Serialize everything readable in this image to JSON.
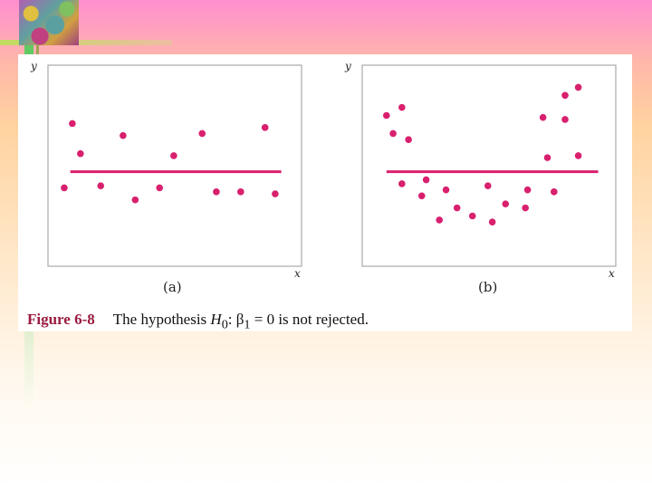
{
  "caption": {
    "figure_label": "Figure 6-8",
    "text_before": "The hypothesis ",
    "hyp_symbol": "H",
    "hyp_subscript": "0",
    "text_mid": ": ",
    "beta_symbol": "β",
    "beta_subscript": "1",
    "text_after": " = 0 is not rejected."
  },
  "colors": {
    "points": "#d8206e",
    "fit_line": "#d8206e",
    "frame": "#a9a9a9"
  },
  "chart_data": [
    {
      "type": "scatter",
      "panel_label": "(a)",
      "xlabel": "x",
      "ylabel": "y",
      "x_ticks": [],
      "y_ticks": [],
      "points": [
        {
          "x": 0.8,
          "y": 3.9
        },
        {
          "x": 1.2,
          "y": 7.1
        },
        {
          "x": 1.6,
          "y": 5.6
        },
        {
          "x": 2.6,
          "y": 4.0
        },
        {
          "x": 3.7,
          "y": 6.5
        },
        {
          "x": 4.3,
          "y": 3.3
        },
        {
          "x": 5.5,
          "y": 3.9
        },
        {
          "x": 6.2,
          "y": 5.5
        },
        {
          "x": 7.6,
          "y": 6.6
        },
        {
          "x": 8.3,
          "y": 3.7
        },
        {
          "x": 9.5,
          "y": 3.7
        },
        {
          "x": 10.7,
          "y": 6.9
        },
        {
          "x": 11.2,
          "y": 3.6
        }
      ],
      "fit_line": {
        "x_start": 1.1,
        "x_end": 11.5,
        "y": 4.7
      },
      "xlim": [
        0,
        12.5
      ],
      "ylim": [
        0,
        10
      ]
    },
    {
      "type": "scatter",
      "panel_label": "(b)",
      "xlabel": "x",
      "ylabel": "y",
      "x_ticks": [],
      "y_ticks": [],
      "points": [
        {
          "x": 1.1,
          "y": 7.5
        },
        {
          "x": 1.4,
          "y": 6.6
        },
        {
          "x": 1.8,
          "y": 7.9
        },
        {
          "x": 2.1,
          "y": 6.3
        },
        {
          "x": 1.8,
          "y": 4.1
        },
        {
          "x": 2.7,
          "y": 3.5
        },
        {
          "x": 2.9,
          "y": 4.3
        },
        {
          "x": 3.5,
          "y": 2.3
        },
        {
          "x": 3.8,
          "y": 3.8
        },
        {
          "x": 4.3,
          "y": 2.9
        },
        {
          "x": 5.0,
          "y": 2.5
        },
        {
          "x": 5.7,
          "y": 4.0
        },
        {
          "x": 5.9,
          "y": 2.2
        },
        {
          "x": 6.5,
          "y": 3.1
        },
        {
          "x": 7.4,
          "y": 2.9
        },
        {
          "x": 7.5,
          "y": 3.8
        },
        {
          "x": 8.2,
          "y": 7.4
        },
        {
          "x": 8.4,
          "y": 5.4
        },
        {
          "x": 8.7,
          "y": 3.7
        },
        {
          "x": 9.2,
          "y": 8.5
        },
        {
          "x": 9.2,
          "y": 7.3
        },
        {
          "x": 9.8,
          "y": 5.5
        },
        {
          "x": 9.8,
          "y": 8.9
        }
      ],
      "fit_line": {
        "x_start": 1.1,
        "x_end": 10.7,
        "y": 4.7
      },
      "xlim": [
        0,
        11.5
      ],
      "ylim": [
        0,
        10
      ]
    }
  ]
}
